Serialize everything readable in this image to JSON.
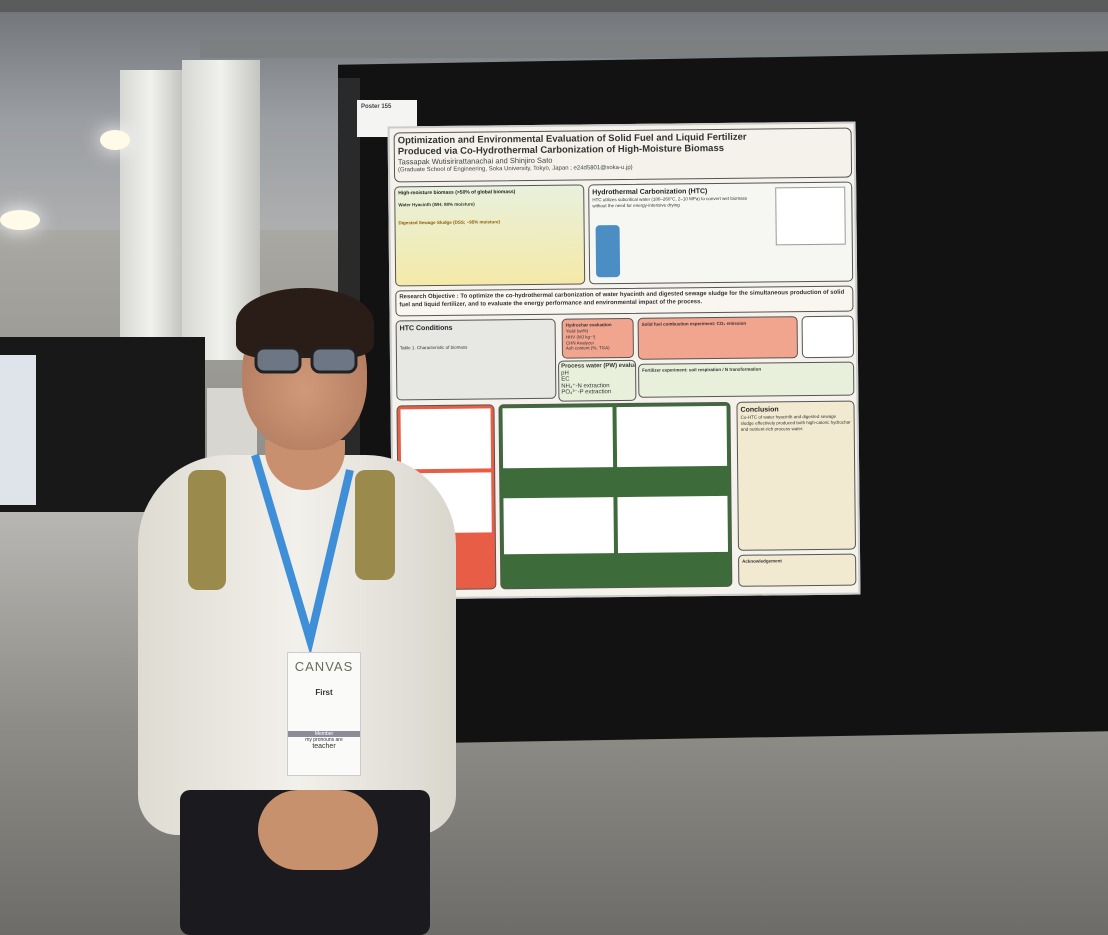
{
  "scene": {
    "description_tags": [
      "conference-hall",
      "poster-board",
      "presenter"
    ]
  },
  "tag": {
    "label": "Poster 155"
  },
  "poster": {
    "title_line1": "Optimization and Environmental Evaluation of Solid Fuel and Liquid Fertilizer",
    "title_line2": "Produced via Co-Hydrothermal Carbonization of High-Moisture Biomass",
    "authors": "Tassapak Wutisirirattanachai and Shinjiro Sato",
    "affiliation": "(Graduate School of Engineering, Soka University, Tokyo, Japan ; e24d5801@soka-u.jp)",
    "intro": {
      "heading": "High-moisture biomass (>50% of global biomass)",
      "wh": "Water Hyacinth (WH; 88% moisture)",
      "dss": "Digested Sewage Sludge (DSS; ~95% moisture)"
    },
    "htc": {
      "heading": "Hydrothermal Carbonization (HTC)",
      "text": "HTC utilizes subcritical water (180–260°C, 2–10 MPa) to convert wet biomass without the need for energy-intensive drying"
    },
    "objective": "Research Objective : To optimize the co-hydrothermal carbonization of water hyacinth and digested sewage sludge for the simultaneous production of solid fuel and liquid fertilizer, and to evaluate the energy performance and environmental impact of the process.",
    "conditions": {
      "heading": "HTC Conditions",
      "table_caption": "Table 1. Characteristic of biomass"
    },
    "hydrochar": {
      "heading": "Hydrochar evaluation",
      "items": [
        "Yield (wt%)",
        "HHV (MJ kg⁻¹)",
        "CHN Analyzer",
        "Ash content (%, TGA)"
      ]
    },
    "combustion": {
      "heading": "Solid fuel combustion experiment: CO₂ emission"
    },
    "process_water": {
      "heading": "Process water (PW) evaluation",
      "items": [
        "pH",
        "EC",
        "NH₄⁺-N extraction",
        "PO₄³⁻-P extraction"
      ]
    },
    "fertilizer": {
      "heading": "Fertilizer experiment: soil respiration / N transformation"
    },
    "conclusion": {
      "heading": "Conclusion",
      "text": "Co-HTC of water hyacinth and digested sewage sludge effectively produced both high-caloric hydrochar and nutrient-rich process water."
    },
    "ack": {
      "heading": "Acknowledgement"
    },
    "colors": {
      "red": "#f1a58f",
      "green": "#3e6b3a",
      "cream": "#f2ead0"
    }
  },
  "badge": {
    "logo": "CANVAS",
    "ribbon": "First",
    "role": "Member",
    "pronouns": "my pronouns are",
    "pronoun_value": "teacher"
  }
}
